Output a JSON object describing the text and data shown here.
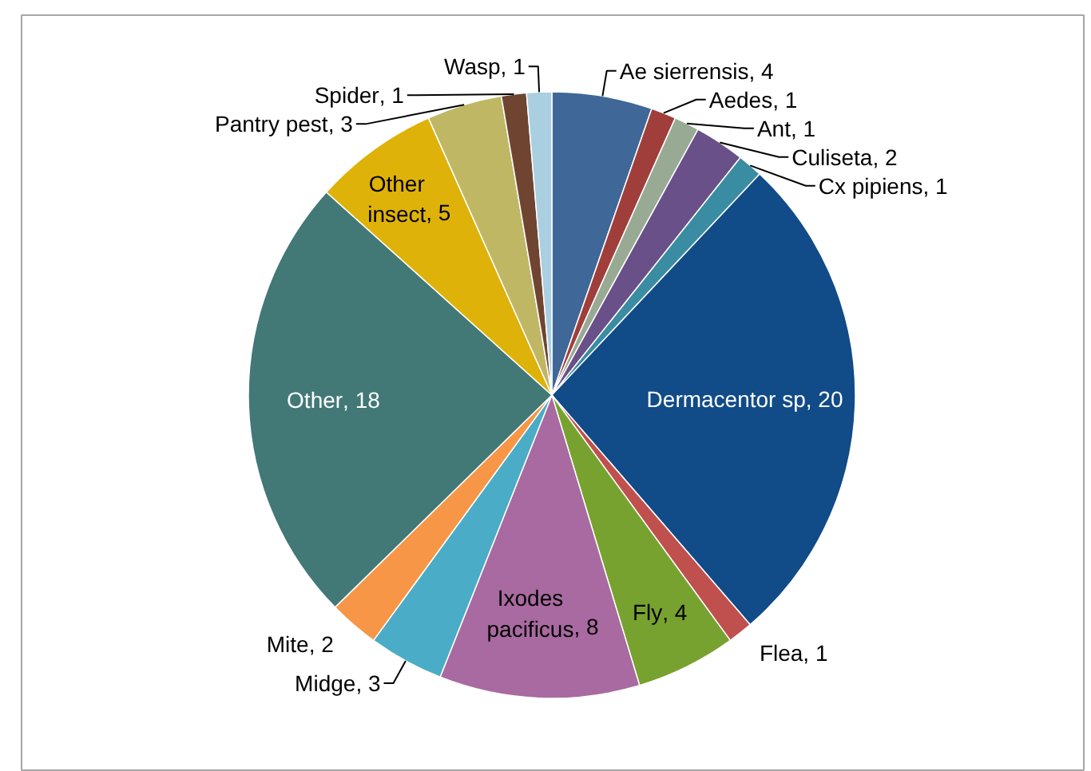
{
  "chart_data": {
    "type": "pie",
    "categories": [
      "Ae sierrensis",
      "Aedes",
      "Ant",
      "Culiseta",
      "Cx pipiens",
      "Dermacentor sp",
      "Flea",
      "Fly",
      "Ixodes pacificus",
      "Midge",
      "Mite",
      "Other",
      "Other insect",
      "Pantry pest",
      "Spider",
      "Wasp"
    ],
    "values": [
      4,
      1,
      1,
      2,
      1,
      20,
      1,
      4,
      8,
      3,
      2,
      18,
      5,
      3,
      1,
      1
    ],
    "colors": [
      "#3f6898",
      "#a03e3b",
      "#98aa94",
      "#6a5089",
      "#3a8ca2",
      "#114b88",
      "#c0504d",
      "#78a22f",
      "#a86aa0",
      "#4aacc6",
      "#f79646",
      "#427876",
      "#deb208",
      "#c0b764",
      "#6f4532",
      "#aacfe0"
    ],
    "value_labels": [
      ", 4",
      ", 1",
      ", 1",
      ", 2",
      ", 1",
      ", 20",
      ", 1",
      ", 4",
      ", 8",
      ", 3",
      ", 2",
      ", 18",
      ", 5",
      ", 3",
      ", 1",
      ", 1"
    ]
  }
}
